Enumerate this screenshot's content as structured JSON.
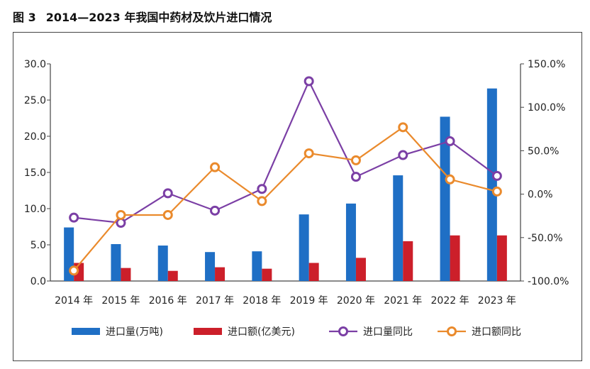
{
  "figure": {
    "number": "图 3",
    "title": "2014—2023 年我国中药材及饮片进口情况"
  },
  "chart_data": {
    "type": "bar",
    "categories": [
      "2014 年",
      "2015 年",
      "2016 年",
      "2017 年",
      "2018 年",
      "2019 年",
      "2020 年",
      "2021 年",
      "2022 年",
      "2023 年"
    ],
    "series": [
      {
        "name": "进口量(万吨)",
        "type": "bar",
        "axis": "left",
        "color": "#1f6fc5",
        "values": [
          7.4,
          5.1,
          4.9,
          4.0,
          4.1,
          9.2,
          10.7,
          14.6,
          22.7,
          26.6
        ]
      },
      {
        "name": "进口额(亿美元)",
        "type": "bar",
        "axis": "left",
        "color": "#cc1f2a",
        "values": [
          2.5,
          1.8,
          1.4,
          1.9,
          1.7,
          2.5,
          3.2,
          5.5,
          6.3,
          6.3
        ]
      },
      {
        "name": "进口量同比",
        "type": "line",
        "axis": "right",
        "color": "#7b3fa5",
        "values": [
          -27,
          -33,
          1,
          -19,
          6,
          130,
          20,
          45,
          61,
          21
        ]
      },
      {
        "name": "进口额同比",
        "type": "line",
        "axis": "right",
        "color": "#ea8a2c",
        "values": [
          -88,
          -24,
          -24,
          31,
          -8,
          47,
          39,
          77,
          17,
          3
        ]
      }
    ],
    "left_axis": {
      "min": 0,
      "max": 30,
      "ticks": [
        "0.0",
        "5.0",
        "10.0",
        "15.0",
        "20.0",
        "25.0",
        "30.0"
      ]
    },
    "right_axis": {
      "min": -100,
      "max": 150,
      "ticks": [
        "-100.0%",
        "-50.0%",
        "0.0%",
        "50.0%",
        "100.0%",
        "150.0%"
      ]
    },
    "legend_position": "bottom",
    "grid": false
  },
  "legend": [
    {
      "label": "进口量(万吨)",
      "kind": "bar",
      "color": "#1f6fc5"
    },
    {
      "label": "进口额(亿美元)",
      "kind": "bar",
      "color": "#cc1f2a"
    },
    {
      "label": "进口量同比",
      "kind": "line",
      "color": "#7b3fa5"
    },
    {
      "label": "进口额同比",
      "kind": "line",
      "color": "#ea8a2c"
    }
  ]
}
